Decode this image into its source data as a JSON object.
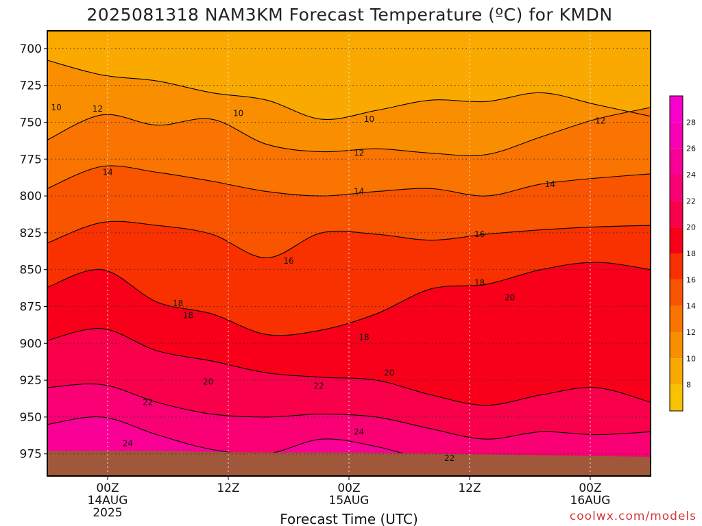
{
  "chart_data": {
    "type": "heatmap",
    "title": "2025081318 NAM3KM Forecast Temperature (ºC) for KMDN",
    "xlabel": "Forecast Time (UTC)",
    "ylabel": "",
    "credit": "coolwx.com/models",
    "x_ticks": [
      {
        "hour": 6,
        "lines": [
          "00Z",
          "14AUG",
          "2025"
        ]
      },
      {
        "hour": 18,
        "lines": [
          "12Z"
        ]
      },
      {
        "hour": 30,
        "lines": [
          "00Z",
          "15AUG"
        ]
      },
      {
        "hour": 42,
        "lines": [
          "12Z"
        ]
      },
      {
        "hour": 54,
        "lines": [
          "00Z",
          "16AUG"
        ]
      }
    ],
    "xlim": [
      0,
      60
    ],
    "y_ticks": [
      700,
      725,
      750,
      775,
      800,
      825,
      850,
      875,
      900,
      925,
      950,
      975
    ],
    "ylim_hpa": [
      688,
      990
    ],
    "surface_hpa": [
      973,
      973,
      974,
      974,
      975,
      976,
      977
    ],
    "surface_hours": [
      0,
      10,
      20,
      30,
      40,
      50,
      60
    ],
    "colorbar": {
      "ticks": [
        8,
        10,
        12,
        14,
        16,
        18,
        20,
        22,
        24,
        26,
        28
      ],
      "bands": [
        {
          "from": 6,
          "to": 8,
          "color": "#f9c200"
        },
        {
          "from": 8,
          "to": 10,
          "color": "#f9a900"
        },
        {
          "from": 10,
          "to": 12,
          "color": "#f98f00"
        },
        {
          "from": 12,
          "to": 14,
          "color": "#f97400"
        },
        {
          "from": 14,
          "to": 16,
          "color": "#f95400"
        },
        {
          "from": 16,
          "to": 18,
          "color": "#f93000"
        },
        {
          "from": 18,
          "to": 20,
          "color": "#f9001a"
        },
        {
          "from": 20,
          "to": 22,
          "color": "#f9004a"
        },
        {
          "from": 22,
          "to": 24,
          "color": "#f90074"
        },
        {
          "from": 24,
          "to": 26,
          "color": "#f90096"
        },
        {
          "from": 26,
          "to": 28,
          "color": "#f900b4"
        },
        {
          "from": 28,
          "to": 30,
          "color": "#f900cc"
        }
      ]
    },
    "isotherms": [
      {
        "value": 10,
        "hpa": [
          708,
          718,
          722,
          730,
          735,
          748,
          742,
          735,
          736,
          730,
          738,
          746
        ]
      },
      {
        "value": 12,
        "hpa": [
          762,
          745,
          752,
          748,
          765,
          770,
          768,
          771,
          772,
          760,
          748,
          740
        ]
      },
      {
        "value": 14,
        "hpa": [
          795,
          780,
          784,
          790,
          797,
          800,
          797,
          795,
          800,
          792,
          788,
          785
        ]
      },
      {
        "value": 16,
        "hpa": [
          832,
          818,
          820,
          826,
          842,
          825,
          826,
          830,
          826,
          823,
          821,
          820
        ]
      },
      {
        "value": 18,
        "hpa": [
          862,
          850,
          872,
          880,
          894,
          891,
          880,
          863,
          860,
          850,
          845,
          850
        ]
      },
      {
        "value": 20,
        "hpa": [
          898,
          890,
          905,
          912,
          920,
          923,
          925,
          935,
          942,
          935,
          930,
          940
        ]
      },
      {
        "value": 22,
        "hpa": [
          930,
          928,
          940,
          948,
          950,
          948,
          950,
          958,
          965,
          960,
          962,
          960
        ]
      },
      {
        "value": 24,
        "hpa": [
          955,
          950,
          962,
          972,
          975,
          965,
          970,
          980,
          988,
          985,
          980,
          985
        ]
      }
    ],
    "contour_labels": [
      {
        "text": "10",
        "hour": 0.9,
        "hpa": 740
      },
      {
        "text": "10",
        "hour": 19,
        "hpa": 744
      },
      {
        "text": "10",
        "hour": 32,
        "hpa": 748
      },
      {
        "text": "12",
        "hour": 5,
        "hpa": 741
      },
      {
        "text": "12",
        "hour": 31,
        "hpa": 771
      },
      {
        "text": "12",
        "hour": 55,
        "hpa": 749
      },
      {
        "text": "14",
        "hour": 6,
        "hpa": 784
      },
      {
        "text": "14",
        "hour": 31,
        "hpa": 797
      },
      {
        "text": "14",
        "hour": 50,
        "hpa": 792
      },
      {
        "text": "16",
        "hour": 24,
        "hpa": 844
      },
      {
        "text": "16",
        "hour": 43,
        "hpa": 826
      },
      {
        "text": "18",
        "hour": 13,
        "hpa": 873
      },
      {
        "text": "18",
        "hour": 14,
        "hpa": 881
      },
      {
        "text": "18",
        "hour": 31.5,
        "hpa": 896
      },
      {
        "text": "18",
        "hour": 43,
        "hpa": 859
      },
      {
        "text": "20",
        "hour": 16,
        "hpa": 926
      },
      {
        "text": "20",
        "hour": 34,
        "hpa": 920
      },
      {
        "text": "20",
        "hour": 46,
        "hpa": 869
      },
      {
        "text": "22",
        "hour": 10,
        "hpa": 940
      },
      {
        "text": "22",
        "hour": 27,
        "hpa": 929
      },
      {
        "text": "22",
        "hour": 40,
        "hpa": 978
      },
      {
        "text": "24",
        "hour": 8,
        "hpa": 968
      },
      {
        "text": "24",
        "hour": 31,
        "hpa": 960
      }
    ]
  }
}
